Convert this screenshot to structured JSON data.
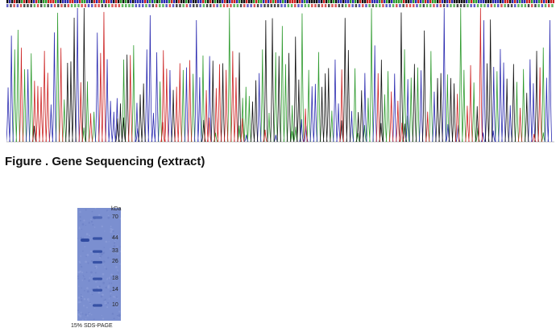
{
  "caption": "Figure . Gene Sequencing (extract)",
  "chromatogram": {
    "base_colors": {
      "A": "#2e9b2e",
      "C": "#2b2bb0",
      "G": "#111111",
      "T": "#cc2222"
    }
  },
  "gel": {
    "unit_label": "kDa",
    "markers": [
      {
        "label": "70",
        "kda": 70
      },
      {
        "label": "44",
        "kda": 44
      },
      {
        "label": "33",
        "kda": 33
      },
      {
        "label": "26",
        "kda": 26
      },
      {
        "label": "18",
        "kda": 18
      },
      {
        "label": "14",
        "kda": 14
      },
      {
        "label": "10",
        "kda": 10
      }
    ],
    "caption": "15% SDS-PAGE",
    "gel_color": "#7b8fd0",
    "band_color": "#2f4aa0"
  }
}
